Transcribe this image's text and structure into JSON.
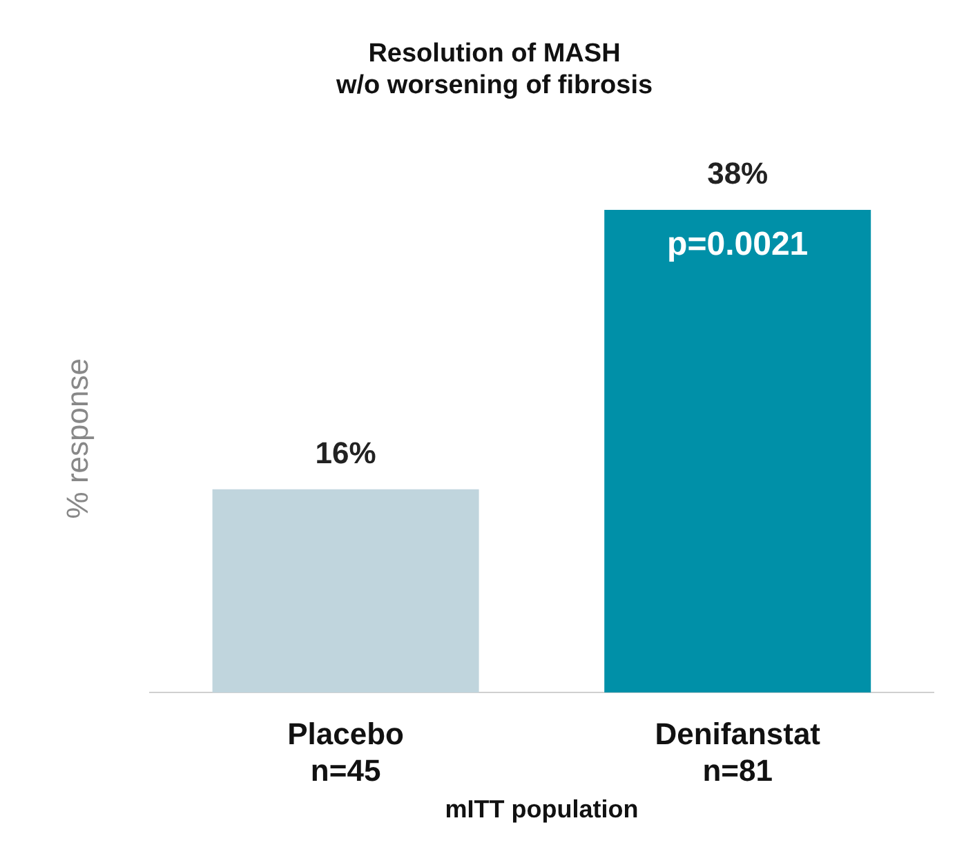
{
  "chart_data": {
    "type": "bar",
    "title": "Resolution of MASH\nw/o worsening of fibrosis",
    "ylabel": "% response",
    "xlabel": "mITT population",
    "categories": [
      "Placebo\nn=45",
      "Denifanstat\nn=81"
    ],
    "values": [
      16,
      38
    ],
    "colors": [
      "#c0d5dd",
      "#0090a8"
    ],
    "value_labels": [
      "16%",
      "38%"
    ],
    "annotations": [
      "p=0.0021"
    ],
    "grid": false,
    "legend": false
  }
}
